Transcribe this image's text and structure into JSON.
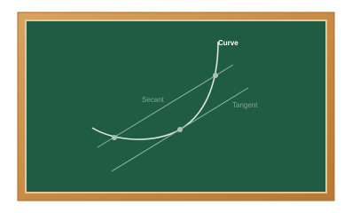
{
  "labels": {
    "curve": "Curve",
    "secant": "Secant",
    "tangent": "Tangent"
  }
}
